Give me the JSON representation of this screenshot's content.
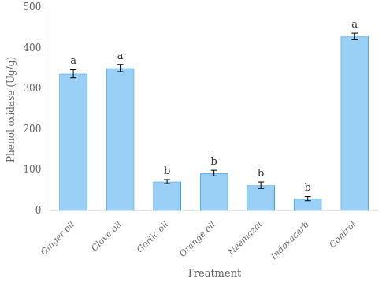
{
  "chart_data": {
    "type": "bar",
    "categories": [
      "Ginger oil",
      "Clove oil",
      "Garlic oil",
      "Orange oil",
      "Neemazal",
      "Indoxacarb",
      "Control"
    ],
    "values": [
      338,
      352,
      72,
      93,
      63,
      30,
      430
    ],
    "errors": [
      10,
      9,
      5,
      7,
      8,
      5,
      8
    ],
    "annotations": [
      "a",
      "a",
      "b",
      "b",
      "b",
      "b",
      "a"
    ],
    "xlabel": "Treatment",
    "ylabel": "Phenol oxidase (Ug/g)",
    "ylim": [
      0,
      500
    ],
    "yticks": [
      0,
      100,
      200,
      300,
      400,
      500
    ],
    "grid": false
  }
}
